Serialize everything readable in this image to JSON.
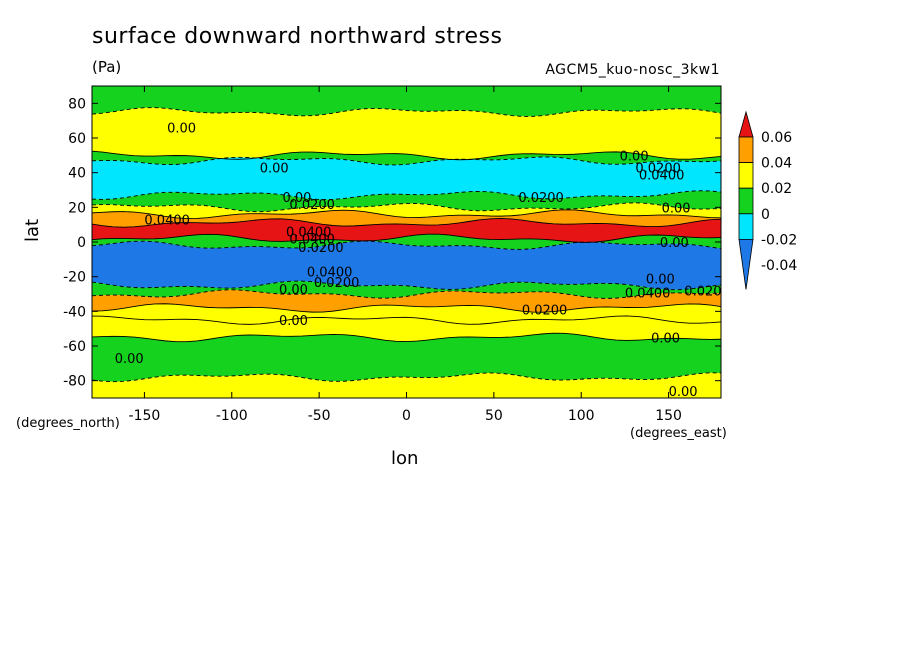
{
  "chart_data": {
    "type": "heatmap",
    "title": "surface downward northward stress",
    "units": "(Pa)",
    "dataset": "AGCM5_kuo-nosc_3kw1",
    "xlabel": "lon",
    "ylabel": "lat",
    "x_units": "(degrees_east)",
    "y_units": "(degrees_north)",
    "xlim": [
      -180,
      180
    ],
    "ylim": [
      -90,
      90
    ],
    "x_ticks": [
      -150,
      -100,
      -50,
      0,
      50,
      100,
      150
    ],
    "y_ticks": [
      80,
      60,
      40,
      20,
      0,
      -20,
      -40,
      -60,
      -80
    ],
    "x_tick_labels": [
      "-150",
      "-100",
      "-50",
      "0",
      "50",
      "100",
      "150"
    ],
    "y_tick_labels": [
      "80",
      "60",
      "40",
      "20",
      "0",
      "-20",
      "-40",
      "-60",
      "-80"
    ],
    "colorbar": {
      "levels": [
        -0.04,
        -0.02,
        0,
        0.02,
        0.04,
        0.06
      ],
      "labels": [
        "0.06",
        "0.04",
        "0.02",
        "0",
        "-0.02",
        "-0.04"
      ],
      "colors": [
        "#1e78e6",
        "#00e6ff",
        "#14d21e",
        "#ffff00",
        "#ffa000",
        "#e61414"
      ]
    },
    "bands": [
      {
        "lat": [
          75,
          90
        ],
        "value": -0.01
      },
      {
        "lat": [
          50,
          75
        ],
        "value": 0.01
      },
      {
        "lat": [
          47,
          50
        ],
        "value": -0.01
      },
      {
        "lat": [
          27,
          47
        ],
        "value": -0.03
      },
      {
        "lat": [
          20,
          27
        ],
        "value": -0.01
      },
      {
        "lat": [
          16,
          20
        ],
        "value": 0.01
      },
      {
        "lat": [
          11,
          16
        ],
        "value": 0.03
      },
      {
        "lat": [
          2,
          11
        ],
        "value": 0.05
      },
      {
        "lat": [
          -2,
          2
        ],
        "value": -0.01
      },
      {
        "lat": [
          -25,
          -2
        ],
        "value": -0.05
      },
      {
        "lat": [
          -30,
          -25
        ],
        "value": -0.01
      },
      {
        "lat": [
          -38,
          -30
        ],
        "value": 0.03
      },
      {
        "lat": [
          -45,
          -38
        ],
        "value": 0.01
      },
      {
        "lat": [
          -55,
          -45
        ],
        "value": 0.01
      },
      {
        "lat": [
          -78,
          -55
        ],
        "value": -0.01
      },
      {
        "lat": [
          -90,
          -78
        ],
        "value": 0.01
      }
    ],
    "contour_labels": [
      {
        "text": "0.00",
        "lon": -137,
        "lat": 66
      },
      {
        "text": "0.00",
        "lon": -84,
        "lat": 43
      },
      {
        "text": "0.00",
        "lon": -71,
        "lat": 26
      },
      {
        "text": "0.0200",
        "lon": -67,
        "lat": 22
      },
      {
        "text": "0.0400",
        "lon": -150,
        "lat": 13
      },
      {
        "text": "0.0400",
        "lon": -69,
        "lat": 6
      },
      {
        "text": "0.0400",
        "lon": -67,
        "lat": 2
      },
      {
        "text": "0.0200",
        "lon": -62,
        "lat": -3
      },
      {
        "text": "0.0400",
        "lon": -57,
        "lat": -17
      },
      {
        "text": "0.0200",
        "lon": -53,
        "lat": -23
      },
      {
        "text": "0.00",
        "lon": -73,
        "lat": -27
      },
      {
        "text": "0.00",
        "lon": -73,
        "lat": -45
      },
      {
        "text": "0.00",
        "lon": -167,
        "lat": -67
      },
      {
        "text": "0.00",
        "lon": 122,
        "lat": 50
      },
      {
        "text": "0.0200",
        "lon": 131,
        "lat": 43
      },
      {
        "text": "0.0400",
        "lon": 133,
        "lat": 39
      },
      {
        "text": "0.0200",
        "lon": 64,
        "lat": 26
      },
      {
        "text": "0.00",
        "lon": 146,
        "lat": 20
      },
      {
        "text": "0.00",
        "lon": 145,
        "lat": 0
      },
      {
        "text": "0.00",
        "lon": 137,
        "lat": -21
      },
      {
        "text": "0.0200",
        "lon": 159,
        "lat": -28
      },
      {
        "text": "0.0400",
        "lon": 125,
        "lat": -29
      },
      {
        "text": "0.0200",
        "lon": 66,
        "lat": -39
      },
      {
        "text": "0.00",
        "lon": 140,
        "lat": -55
      },
      {
        "text": "0.00",
        "lon": 150,
        "lat": -86
      }
    ]
  }
}
